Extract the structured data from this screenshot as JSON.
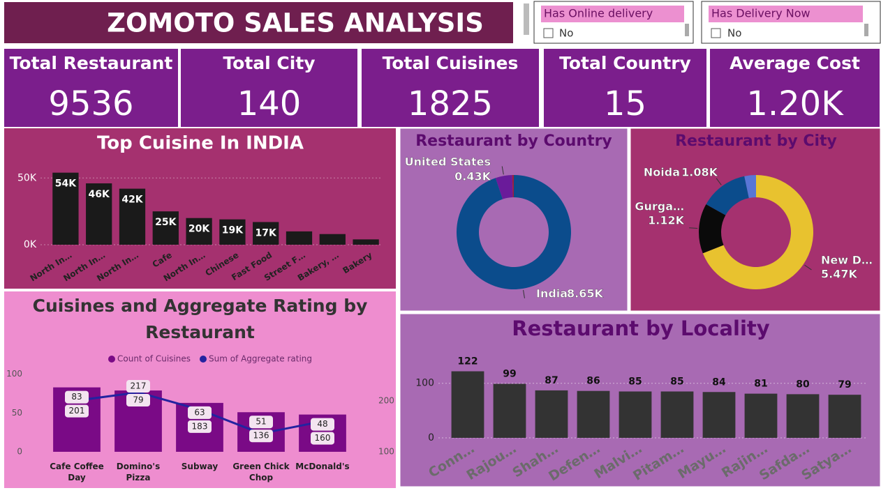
{
  "header": {
    "title": "ZOMOTO SALES ANALYSIS"
  },
  "slicers": [
    {
      "title": "Has Online delivery",
      "option": "No"
    },
    {
      "title": "Has Delivery Now",
      "option": "No"
    }
  ],
  "cards": [
    {
      "label": "Total Restaurant",
      "value": 9536
    },
    {
      "label": "Total City",
      "value": 140
    },
    {
      "label": "Total Cuisines",
      "value": 1825
    },
    {
      "label": "Total Country",
      "value": 15
    },
    {
      "label": "Average Cost",
      "value": 1200,
      "value_label": "1.20K"
    }
  ],
  "chart_data": [
    {
      "type": "bar",
      "title": "Top Cuisine In INDIA",
      "categories": [
        "North In…",
        "North In…",
        "North In…",
        "Cafe",
        "North In…",
        "Chinese",
        "Fast Food",
        "Street F…",
        "Bakery, …",
        "Bakery"
      ],
      "values": [
        54000,
        46000,
        42000,
        25000,
        20000,
        19000,
        17000,
        10000,
        8000,
        4000
      ],
      "value_labels": [
        "54K",
        "46K",
        "42K",
        "25K",
        "20K",
        "19K",
        "17K",
        null,
        null,
        null
      ],
      "color": "#1a1a1a",
      "ylim": [
        0,
        58000
      ],
      "yticks": [
        {
          "value": 0,
          "label": "0K"
        },
        {
          "value": 50000,
          "label": "50K"
        }
      ],
      "grid": true
    },
    {
      "type": "donut",
      "title": "Restaurant by Country",
      "categories": [
        "India",
        "United States",
        null
      ],
      "values": [
        8650,
        430,
        40
      ],
      "value_labels": [
        "8.65K",
        "0.43K",
        null
      ],
      "colors": [
        "#0b4c8c",
        "#6a1b9a",
        "#9c1f3c"
      ]
    },
    {
      "type": "donut",
      "title": "Restaurant by City",
      "categories": [
        "New D…",
        "Gurga…",
        "Noida",
        null
      ],
      "values": [
        5470,
        1120,
        1080,
        260
      ],
      "value_labels": [
        "5.47K",
        "1.12K",
        "1.08K",
        null
      ],
      "colors": [
        "#e8c22f",
        "#0a0a0a",
        "#0b4c8c",
        "#5876d6"
      ]
    },
    {
      "type": "combo",
      "title": "Cuisines and Aggregate Rating by Restaurant",
      "categories": [
        "Cafe Coffee Day",
        "Domino's Pizza",
        "Subway",
        "Green Chick Chop",
        "McDonald's"
      ],
      "series": [
        {
          "name": "Count of Cuisines",
          "color": "#7a0a86",
          "values": [
            83,
            79,
            63,
            51,
            48
          ]
        },
        {
          "name": "Sum of Aggregate rating",
          "color": "#2323a0",
          "axis": "y2",
          "values": [
            201,
            217,
            183,
            136,
            160
          ]
        }
      ],
      "ylim": [
        0,
        106
      ],
      "yticks": [
        0,
        50,
        100
      ],
      "y2lim": [
        100,
        262
      ],
      "y2ticks": [
        100,
        200
      ]
    },
    {
      "type": "bar",
      "title": "Restaurant by Locality",
      "categories": [
        "Conn…",
        "Rajou…",
        "Shah…",
        "Defen…",
        "Malvi…",
        "Pitam…",
        "Mayu…",
        "Rajin…",
        "Safda…",
        "Satya…"
      ],
      "values": [
        122,
        99,
        87,
        86,
        85,
        85,
        84,
        81,
        80,
        79
      ],
      "color": "#333333",
      "ylim": [
        0,
        138
      ],
      "yticks": [
        0,
        100
      ],
      "grid": true
    }
  ]
}
